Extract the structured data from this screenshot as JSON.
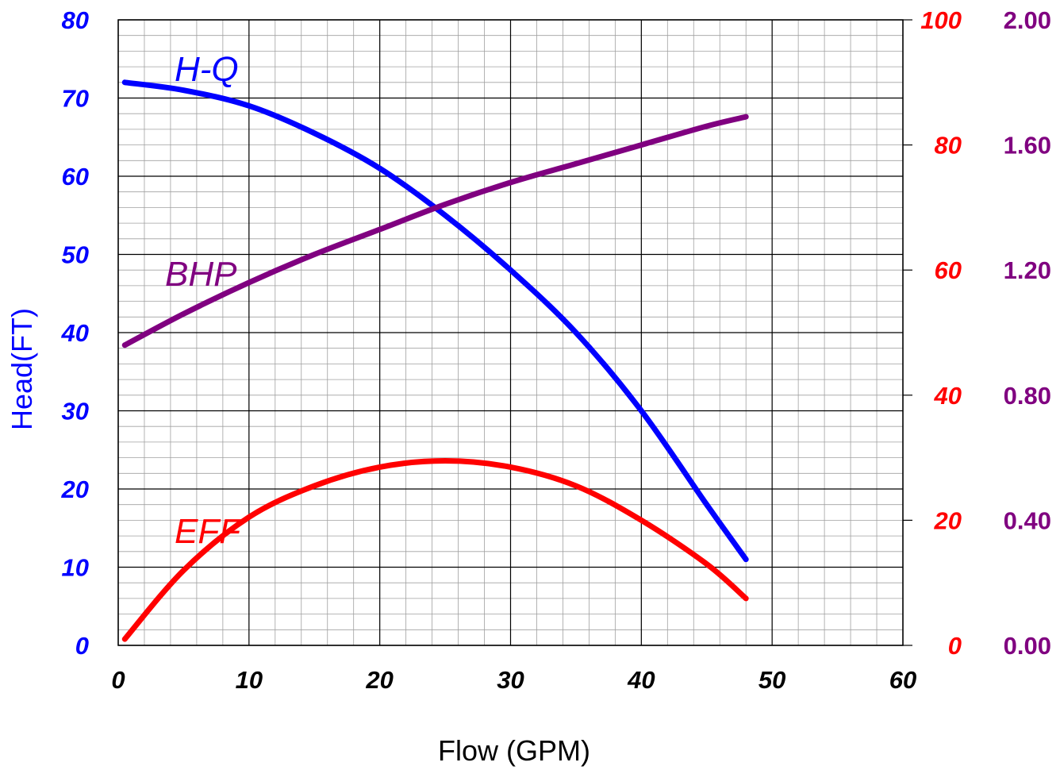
{
  "chart_data": {
    "type": "line",
    "xlabel": "Flow (GPM)",
    "ylabel": "Head(FT)",
    "xlim": [
      0,
      60
    ],
    "x_ticks": [
      "0",
      "10",
      "20",
      "30",
      "40",
      "50",
      "60"
    ],
    "grid": true,
    "axes": {
      "head": {
        "ylim": [
          0,
          80
        ],
        "ticks": [
          "0",
          "10",
          "20",
          "30",
          "40",
          "50",
          "60",
          "70",
          "80"
        ],
        "color": "#0000ff"
      },
      "eff": {
        "ylim": [
          0,
          100
        ],
        "ticks": [
          "0",
          "20",
          "40",
          "60",
          "80",
          "100"
        ],
        "color": "#ff0000"
      },
      "bhp": {
        "ylim": [
          0,
          2
        ],
        "ticks": [
          "0.00",
          "0.40",
          "0.80",
          "1.20",
          "1.60",
          "2.00"
        ],
        "color": "#800080"
      }
    },
    "series": [
      {
        "name": "H-Q",
        "axis": "head",
        "color": "#0000ff",
        "x": [
          0.5,
          5,
          10,
          15,
          20,
          25,
          30,
          35,
          40,
          45,
          48
        ],
        "y": [
          72,
          71,
          69,
          65.5,
          61,
          55,
          48,
          40,
          30,
          18,
          11
        ]
      },
      {
        "name": "BHP",
        "axis": "bhp",
        "color": "#800080",
        "x": [
          0.5,
          5,
          10,
          15,
          20,
          25,
          30,
          35,
          40,
          45,
          48
        ],
        "y": [
          0.96,
          1.06,
          1.16,
          1.25,
          1.33,
          1.41,
          1.48,
          1.54,
          1.6,
          1.66,
          1.69
        ]
      },
      {
        "name": "EFF",
        "axis": "eff",
        "color": "#ff0000",
        "x": [
          0.5,
          5,
          10,
          15,
          20,
          25,
          30,
          35,
          40,
          45,
          48
        ],
        "y": [
          1,
          12,
          20.5,
          25.5,
          28.5,
          29.5,
          28.5,
          25.5,
          20,
          13,
          7.5
        ]
      }
    ]
  }
}
